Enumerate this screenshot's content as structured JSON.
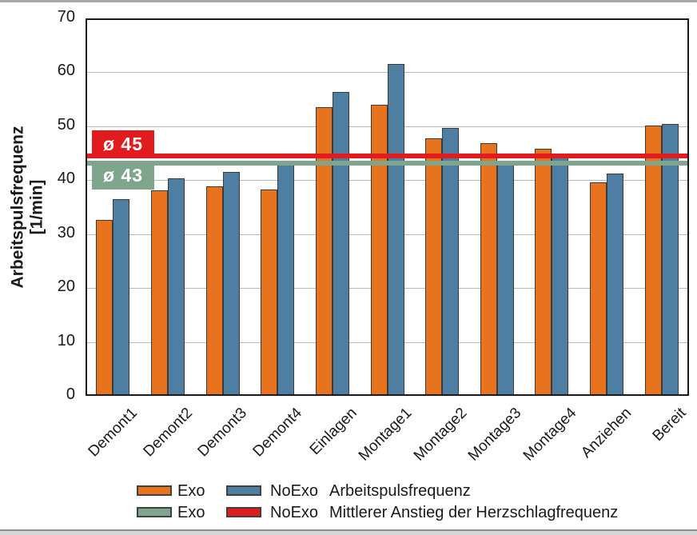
{
  "figure": {
    "background": "#ffffff",
    "top_rule_color": "#a8a8a8",
    "bottom_rule_color": "#8e8e8e"
  },
  "chart_data": {
    "type": "bar",
    "title": "",
    "ylabel": "Arbeitspulsfrequenz [1/min]",
    "ylabel_line1": "Arbeitspulsfrequenz",
    "ylabel_line2": "[1/min]",
    "ylim": [
      0,
      70
    ],
    "yticks": [
      0,
      10,
      20,
      30,
      40,
      50,
      60,
      70
    ],
    "grid": true,
    "legend_position": "bottom",
    "categories": [
      "Demont1",
      "Demont2",
      "Demont3",
      "Demont4",
      "Einlagen",
      "Montage1",
      "Montage2",
      "Montage3",
      "Montage4",
      "Anziehen",
      "Bereit"
    ],
    "series": [
      {
        "name": "Exo",
        "color": "#E8731E",
        "values": [
          32.3,
          37.8,
          38.6,
          38.0,
          53.3,
          53.7,
          47.5,
          46.6,
          45.5,
          39.3,
          49.8
        ]
      },
      {
        "name": "NoExo",
        "color": "#4E7FA3",
        "values": [
          36.2,
          40.0,
          41.2,
          43.1,
          56.0,
          61.2,
          49.4,
          43.3,
          44.2,
          40.9,
          50.1
        ]
      }
    ],
    "reference_lines": [
      {
        "label": "ø 43",
        "mean": 43,
        "line_value": 43.4,
        "color": "#7FA58D",
        "label_position": "below"
      },
      {
        "label": "ø 45",
        "mean": 45,
        "line_value": 44.8,
        "color": "#E21B1F",
        "label_position": "above"
      }
    ],
    "legend": {
      "rows": [
        {
          "swatch1_color": "#E8731E",
          "label1": "Exo",
          "swatch2_color": "#4E7FA3",
          "label2": "NoExo",
          "description": "Arbeitspulsfrequenz"
        },
        {
          "swatch1_color": "#7FA58D",
          "label1": "Exo",
          "swatch2_color": "#E21B1F",
          "label2": "NoExo",
          "description": "Mittlerer Anstieg der Herzschlagfrequenz"
        }
      ]
    },
    "bar_border_color": "#3a3a3a",
    "grid_color": "#b9b9b9",
    "axis_color": "#1a1a1a",
    "text_color": "#1a1a1a"
  }
}
